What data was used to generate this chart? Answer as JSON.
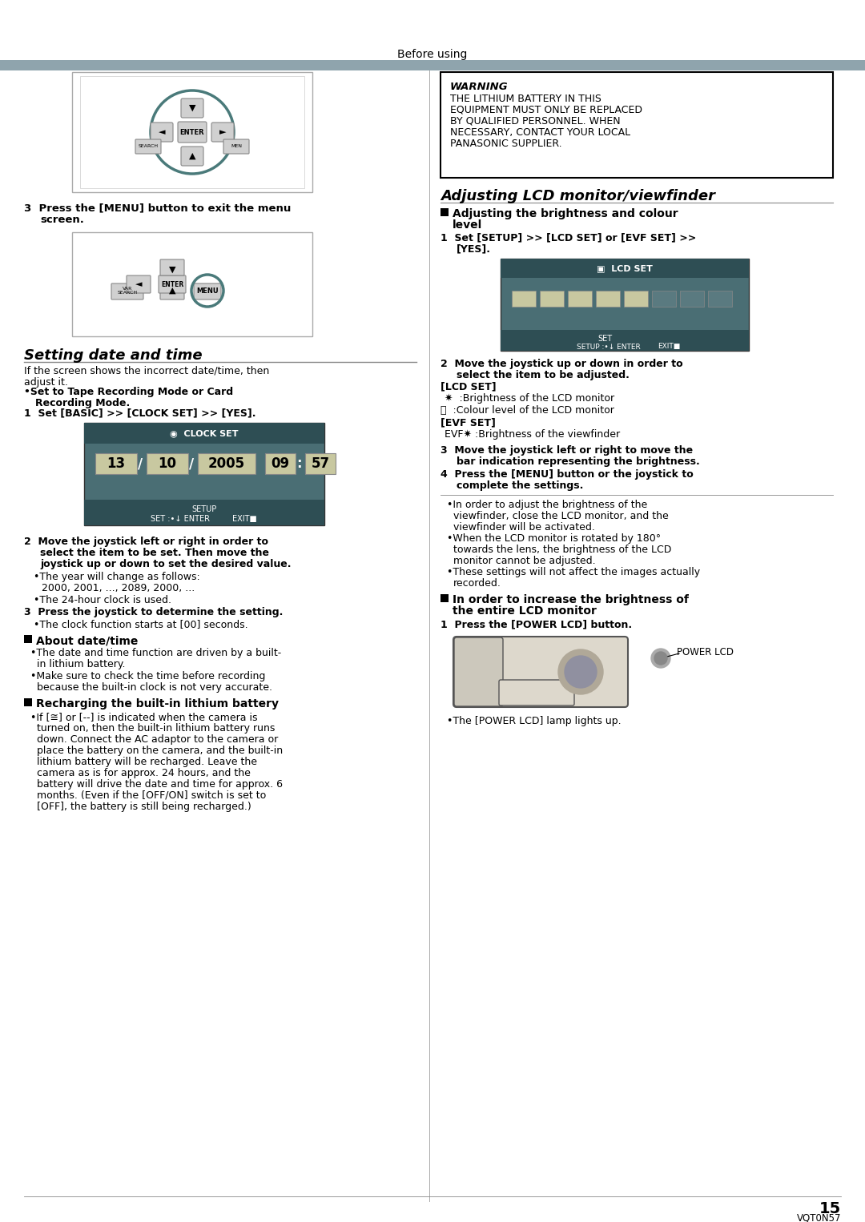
{
  "page_bg": "#ffffff",
  "header_text": "Before using",
  "header_bar_color": "#8fa4ad",
  "page_number": "15",
  "page_number_label": "VQT0N57",
  "warning_title": "WARNING",
  "warning_lines": [
    "THE LITHIUM BATTERY IN THIS",
    "EQUIPMENT MUST ONLY BE REPLACED",
    "BY QUALIFIED PERSONNEL. WHEN",
    "NECESSARY, CONTACT YOUR LOCAL",
    "PANASONIC SUPPLIER."
  ],
  "section1_title": "Setting date and time",
  "section2_title": "Adjusting LCD monitor/viewfinder"
}
